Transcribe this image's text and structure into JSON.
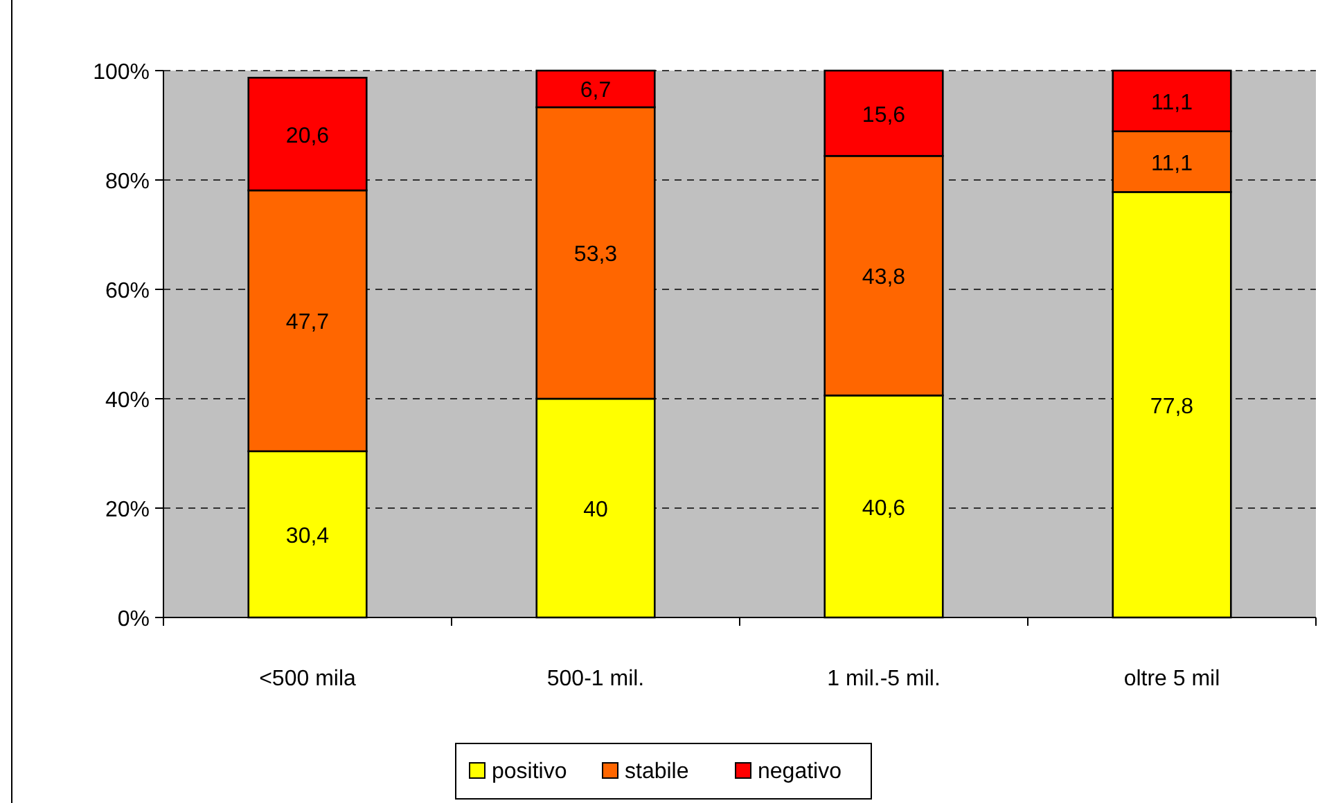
{
  "chart_data": {
    "type": "bar",
    "stacked": true,
    "categories": [
      "<500 mila",
      "500-1 mil.",
      "1 mil.-5 mil.",
      "oltre 5 mil"
    ],
    "series": [
      {
        "name": "positivo",
        "color": "#ffff00",
        "values": [
          30.4,
          40,
          40.6,
          77.8
        ],
        "value_labels": [
          "30,4",
          "40",
          "40,6",
          "77,8"
        ]
      },
      {
        "name": "stabile",
        "color": "#ff6600",
        "values": [
          47.7,
          53.3,
          43.8,
          11.1
        ],
        "value_labels": [
          "47,7",
          "53,3",
          "43,8",
          "11,1"
        ]
      },
      {
        "name": "negativo",
        "color": "#ff0000",
        "values": [
          20.6,
          6.7,
          15.6,
          11.1
        ],
        "value_labels": [
          "20,6",
          "6,7",
          "15,6",
          "11,1"
        ]
      }
    ],
    "ylim": [
      0,
      100
    ],
    "yticks": [
      {
        "value": 0,
        "label": "0%"
      },
      {
        "value": 20,
        "label": "20%"
      },
      {
        "value": 40,
        "label": "40%"
      },
      {
        "value": 60,
        "label": "60%"
      },
      {
        "value": 80,
        "label": "80%"
      },
      {
        "value": 100,
        "label": "100%"
      }
    ],
    "grid": "y",
    "legend": "bottom"
  }
}
